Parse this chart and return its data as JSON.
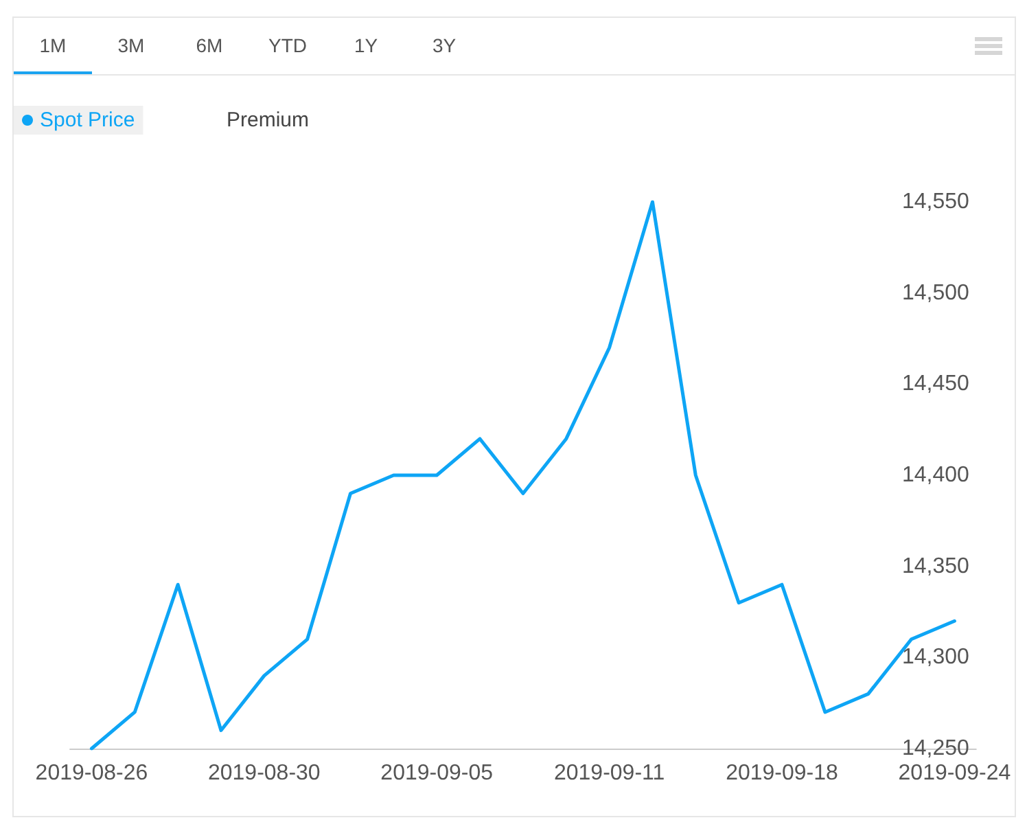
{
  "chart_data": {
    "type": "line",
    "categories": [
      "2019-08-26",
      null,
      null,
      null,
      "2019-08-30",
      null,
      null,
      null,
      "2019-09-05",
      null,
      null,
      null,
      "2019-09-11",
      null,
      null,
      null,
      "2019-09-18",
      null,
      null,
      null,
      "2019-09-24"
    ],
    "series": [
      {
        "name": "Spot Price",
        "color": "#0ea5f5",
        "values": [
          14250,
          14270,
          14340,
          14260,
          14290,
          14310,
          14390,
          14400,
          14400,
          14420,
          14390,
          14420,
          14470,
          14550,
          14400,
          14330,
          14340,
          14270,
          14280,
          14310,
          14320
        ]
      },
      {
        "name": "Premium",
        "values": [
          null,
          null,
          null,
          null,
          null,
          null,
          null,
          null,
          null,
          null,
          null,
          null,
          null,
          null,
          null,
          null,
          null,
          null,
          null,
          null,
          null
        ]
      }
    ],
    "ylim": [
      14250,
      14550
    ],
    "yticks": [
      {
        "value": 14250,
        "label": "14,250"
      },
      {
        "value": 14300,
        "label": "14,300"
      },
      {
        "value": 14350,
        "label": "14,350"
      },
      {
        "value": 14400,
        "label": "14,400"
      },
      {
        "value": 14450,
        "label": "14,450"
      },
      {
        "value": 14500,
        "label": "14,500"
      },
      {
        "value": 14550,
        "label": "14,550"
      }
    ],
    "grid": false,
    "legend": "top left",
    "marker": "none",
    "line_style": "solid",
    "annotations": [
      "1M",
      "3M",
      "6M",
      "YTD",
      "1Y",
      "3Y"
    ]
  }
}
